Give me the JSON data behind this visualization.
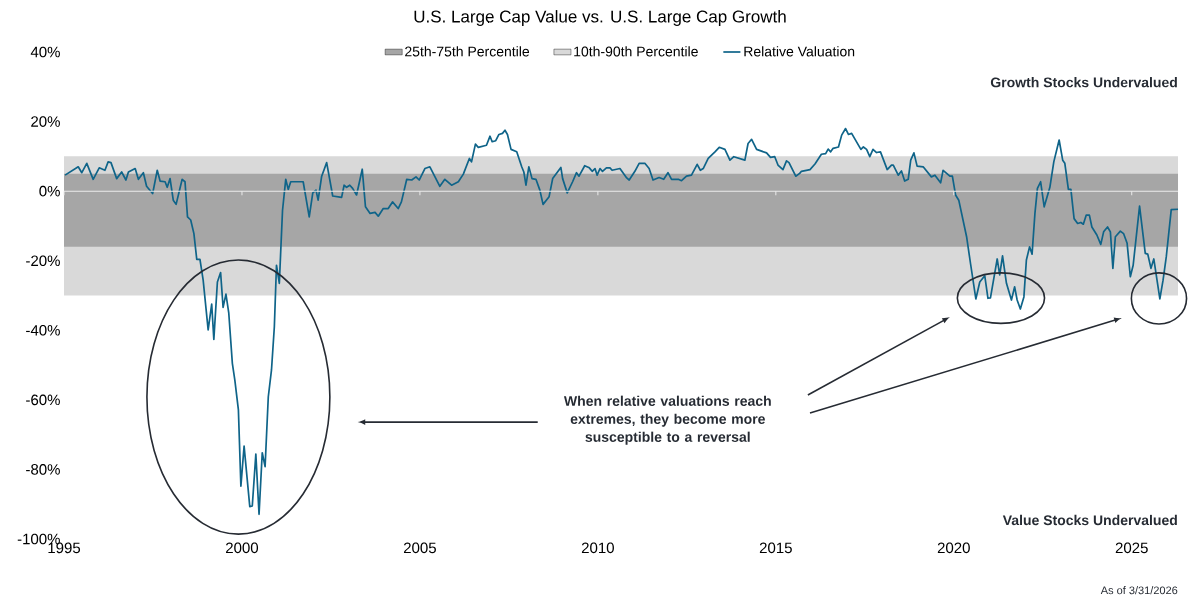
{
  "chart_data": {
    "type": "line",
    "title": "U.S. Large Cap Value vs. U.S. Large Cap Growth",
    "x": [
      1995.03,
      1995.4,
      1995.5,
      1995.64,
      1995.82,
      1995.99,
      1996.15,
      1996.24,
      1996.32,
      1996.48,
      1996.62,
      1996.74,
      1996.81,
      1997.0,
      1997.09,
      1997.23,
      1997.32,
      1997.49,
      1997.62,
      1997.7,
      1997.84,
      1997.9,
      1997.98,
      1998.07,
      1998.15,
      1998.32,
      1998.4,
      1998.47,
      1998.56,
      1998.65,
      1998.73,
      1998.82,
      1998.91,
      1999.05,
      1999.15,
      1999.21,
      1999.31,
      1999.4,
      1999.47,
      1999.55,
      1999.63,
      1999.73,
      1999.8,
      1999.9,
      1999.97,
      2000.06,
      2000.22,
      2000.29,
      2000.39,
      2000.48,
      2000.57,
      2000.65,
      2000.74,
      2000.83,
      2000.91,
      2000.97,
      2001.05,
      2001.14,
      2001.23,
      2001.3,
      2001.37,
      2001.72,
      2001.89,
      2001.99,
      2002.08,
      2002.14,
      2002.24,
      2002.38,
      2002.55,
      2002.8,
      2002.87,
      2002.94,
      2003.03,
      2003.11,
      2003.22,
      2003.38,
      2003.47,
      2003.6,
      2003.74,
      2003.83,
      2003.97,
      2004.11,
      2004.23,
      2004.39,
      2004.48,
      2004.63,
      2004.77,
      2004.89,
      2004.98,
      2005.14,
      2005.28,
      2005.56,
      2005.7,
      2005.89,
      2006.08,
      2006.22,
      2006.39,
      2006.45,
      2006.56,
      2006.64,
      2006.87,
      2006.97,
      2007.03,
      2007.13,
      2007.22,
      2007.32,
      2007.39,
      2007.46,
      2007.56,
      2007.72,
      2007.86,
      2007.92,
      2007.98,
      2008.06,
      2008.15,
      2008.26,
      2008.37,
      2008.46,
      2008.63,
      2008.73,
      2008.96,
      2009.01,
      2009.14,
      2009.29,
      2009.4,
      2009.47,
      2009.63,
      2009.76,
      2009.84,
      2009.92,
      2009.98,
      2010.06,
      2010.13,
      2010.24,
      2010.34,
      2010.4,
      2010.62,
      2010.81,
      2010.88,
      2011.04,
      2011.16,
      2011.32,
      2011.44,
      2011.55,
      2011.72,
      2011.85,
      2011.97,
      2012.07,
      2012.26,
      2012.35,
      2012.49,
      2012.63,
      2012.79,
      2012.88,
      2012.96,
      2013.1,
      2013.29,
      2013.41,
      2013.57,
      2013.71,
      2013.82,
      2014.13,
      2014.22,
      2014.32,
      2014.46,
      2014.74,
      2014.85,
      2014.97,
      2015.06,
      2015.2,
      2015.3,
      2015.37,
      2015.56,
      2015.67,
      2015.72,
      2015.96,
      2016.1,
      2016.28,
      2016.4,
      2016.47,
      2016.54,
      2016.61,
      2016.76,
      2016.85,
      2016.96,
      2017.04,
      2017.13,
      2017.39,
      2017.46,
      2017.55,
      2017.64,
      2017.73,
      2017.83,
      2017.94,
      2018.13,
      2018.25,
      2018.3,
      2018.44,
      2018.53,
      2018.62,
      2018.72,
      2018.79,
      2018.88,
      2018.97,
      2019.14,
      2019.37,
      2019.47,
      2019.63,
      2019.7,
      2019.89,
      2019.96,
      2020.05,
      2020.14,
      2020.36,
      2020.47,
      2020.62,
      2020.73,
      2020.87,
      2020.96,
      2021.03,
      2021.22,
      2021.29,
      2021.37,
      2021.48,
      2021.62,
      2021.71,
      2021.78,
      2021.87,
      2021.97,
      2022.04,
      2022.13,
      2022.2,
      2022.28,
      2022.35,
      2022.44,
      2022.54,
      2022.7,
      2022.81,
      2022.96,
      2023.06,
      2023.12,
      2023.22,
      2023.29,
      2023.38,
      2023.48,
      2023.57,
      2023.64,
      2023.72,
      2023.81,
      2023.88,
      2024.02,
      2024.13,
      2024.21,
      2024.32,
      2024.4,
      2024.47,
      2024.54,
      2024.68,
      2024.77,
      2024.87,
      2024.96,
      2025.04,
      2025.22,
      2025.38,
      2025.45,
      2025.54,
      2025.62,
      2025.79,
      2025.88,
      2025.97,
      2026.11,
      2026.3
    ],
    "series": [
      {
        "name": "Relative Valuation",
        "color": "#0f6489",
        "values": [
          4.6,
          7.0,
          5.3,
          8.0,
          3.4,
          6.7,
          6.0,
          8.4,
          8.2,
          3.6,
          5.5,
          3.2,
          5.5,
          6.5,
          3.4,
          5.3,
          1.4,
          -0.7,
          6.0,
          2.9,
          2.7,
          1.1,
          3.6,
          -2.6,
          -3.8,
          3.4,
          2.7,
          -7.4,
          -8.3,
          -12.2,
          -19.6,
          -19.6,
          -25.6,
          -39.9,
          -32.5,
          -42.6,
          -26.1,
          -23.4,
          -33.4,
          -29.6,
          -35.1,
          -49.5,
          -54.3,
          -62.9,
          -84.8,
          -73.3,
          -90.7,
          -90.5,
          -75.6,
          -92.9,
          -75.2,
          -79.2,
          -59.1,
          -51.4,
          -39.0,
          -21.3,
          -26.5,
          -5.5,
          3.4,
          0.5,
          2.7,
          2.7,
          -7.4,
          -0.5,
          0.3,
          -2.6,
          4.3,
          8.2,
          -1.4,
          -1.8,
          1.7,
          1.1,
          1.7,
          0.8,
          -1.1,
          6.3,
          -4.5,
          -6.4,
          -6.1,
          -7.2,
          -5.0,
          -5.0,
          -3.1,
          -5.0,
          -3.1,
          3.4,
          3.2,
          4.1,
          3.2,
          6.5,
          7.0,
          1.4,
          3.4,
          1.7,
          2.7,
          4.9,
          9.4,
          8.4,
          13.5,
          12.6,
          13.2,
          15.8,
          14.2,
          14.5,
          16.3,
          16.6,
          17.5,
          16.3,
          12.0,
          11.3,
          7.0,
          5.5,
          1.7,
          7.0,
          3.6,
          3.4,
          0.3,
          -3.8,
          -1.6,
          3.6,
          6.8,
          3.6,
          -0.5,
          2.7,
          5.3,
          4.3,
          7.3,
          6.7,
          5.7,
          6.5,
          4.6,
          6.5,
          5.7,
          6.7,
          6.7,
          6.0,
          6.5,
          3.8,
          3.2,
          5.7,
          8.0,
          8.0,
          6.5,
          3.2,
          3.9,
          3.4,
          5.3,
          3.4,
          3.4,
          3.0,
          4.3,
          4.6,
          7.7,
          6.0,
          6.5,
          9.4,
          11.3,
          12.6,
          12.0,
          8.9,
          9.9,
          8.9,
          13.7,
          14.9,
          12.0,
          11.0,
          9.7,
          9.9,
          7.5,
          6.2,
          8.7,
          8.2,
          4.3,
          5.1,
          5.7,
          6.2,
          7.8,
          10.6,
          10.8,
          12.1,
          11.3,
          12.3,
          12.7,
          16.1,
          18.0,
          16.3,
          16.6,
          12.0,
          12.7,
          12.0,
          9.9,
          12.0,
          11.1,
          11.3,
          6.2,
          7.5,
          7.5,
          4.6,
          5.8,
          2.9,
          3.4,
          8.9,
          11.0,
          7.2,
          7.0,
          4.1,
          4.6,
          2.4,
          6.0,
          4.3,
          4.3,
          -1.1,
          -2.6,
          -13.1,
          -20.8,
          -31.0,
          -26.1,
          -24.3,
          -30.8,
          -30.7,
          -19.5,
          -24.1,
          -18.6,
          -26.5,
          -31.3,
          -27.5,
          -31.3,
          -33.9,
          -30.4,
          -19.8,
          -16.0,
          -18.1,
          -6.4,
          0.8,
          2.7,
          -4.5,
          1.1,
          8.4,
          14.7,
          8.9,
          8.0,
          0.5,
          0.5,
          -7.9,
          -9.3,
          -9.0,
          -9.5,
          -6.9,
          -6.9,
          -10.3,
          -12.6,
          -15.3,
          -11.7,
          -10.3,
          -11.7,
          -22.2,
          -13.1,
          -11.5,
          -12.2,
          -15.0,
          -24.6,
          -21.3,
          -4.3,
          -17.9,
          -18.1,
          -22.2,
          -19.5,
          -31.0,
          -25.6,
          -18.9,
          -5.3,
          -5.2
        ]
      }
    ],
    "bands": [
      {
        "axis": "y",
        "from": -16,
        "to": 5,
        "label": "25th-75th Percentile",
        "color": "#a6a6a6"
      },
      {
        "axis": "y",
        "from": -30,
        "to": 10,
        "label": "10th-90th Percentile",
        "color": "#d9d9d9"
      }
    ],
    "xlim": [
      1995,
      2026.3
    ],
    "ylim": [
      -100,
      40
    ],
    "xticks": [
      1995,
      2000,
      2005,
      2010,
      2015,
      2020,
      2025
    ],
    "yticks": [
      {
        "value": 40,
        "label": "40%"
      },
      {
        "value": 20,
        "label": "20%"
      },
      {
        "value": 0,
        "label": "0%"
      },
      {
        "value": -20,
        "label": "-20%"
      },
      {
        "value": -40,
        "label": "-40%"
      },
      {
        "value": -60,
        "label": "-60%"
      },
      {
        "value": -80,
        "label": "-80%"
      },
      {
        "value": -100,
        "label": "-100%"
      }
    ],
    "annotations": [
      "Growth Stocks Undervalued",
      "Value Stocks Undervalued",
      "When relative valuations reach extremes, they become more susceptible to a reversal",
      "As of 3/31/2026"
    ],
    "ref_lines": [
      {
        "axis": "y",
        "value": 0,
        "color": "#ebebeb"
      }
    ],
    "legend": "top",
    "grid": false
  }
}
